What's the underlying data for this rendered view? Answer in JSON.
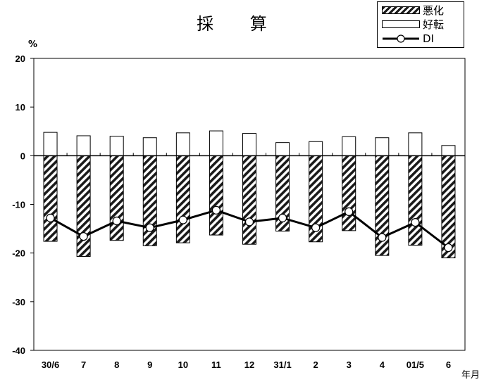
{
  "title": "採 算",
  "y_unit": "%",
  "x_unit": "年月",
  "legend": [
    {
      "key": "worse",
      "label": "悪化",
      "swatch": "hatched-bar"
    },
    {
      "key": "better",
      "label": "好転",
      "swatch": "open-bar"
    },
    {
      "key": "di",
      "label": "DI",
      "swatch": "line-marker"
    }
  ],
  "colors": {
    "line": "#000000",
    "bar_fill_hatch": "#1a1a1a",
    "bar_open": "#ffffff",
    "axis": "#000000"
  },
  "chart_data": {
    "type": "bar",
    "categories": [
      "30/6",
      "7",
      "8",
      "9",
      "10",
      "11",
      "12",
      "31/1",
      "2",
      "3",
      "4",
      "01/5",
      "6"
    ],
    "series": [
      {
        "name": "悪化",
        "type": "bar",
        "values": [
          -17.6,
          -20.7,
          -17.4,
          -18.5,
          -17.9,
          -16.3,
          -18.2,
          -15.5,
          -17.7,
          -15.4,
          -20.5,
          -18.4,
          -21.0
        ]
      },
      {
        "name": "好転",
        "type": "bar",
        "values": [
          4.8,
          4.1,
          4.0,
          3.7,
          4.7,
          5.1,
          4.6,
          2.7,
          2.9,
          3.9,
          3.7,
          4.7,
          2.1
        ]
      },
      {
        "name": "DI",
        "type": "line",
        "values": [
          -12.8,
          -16.6,
          -13.4,
          -14.8,
          -13.2,
          -11.2,
          -13.6,
          -12.8,
          -14.8,
          -11.5,
          -16.8,
          -13.7,
          -18.9
        ]
      }
    ],
    "ylim": [
      -40,
      20
    ],
    "yticks": [
      20,
      10,
      0,
      -10,
      -20,
      -30,
      -40
    ],
    "grid": false,
    "legend_position": "top-right"
  }
}
